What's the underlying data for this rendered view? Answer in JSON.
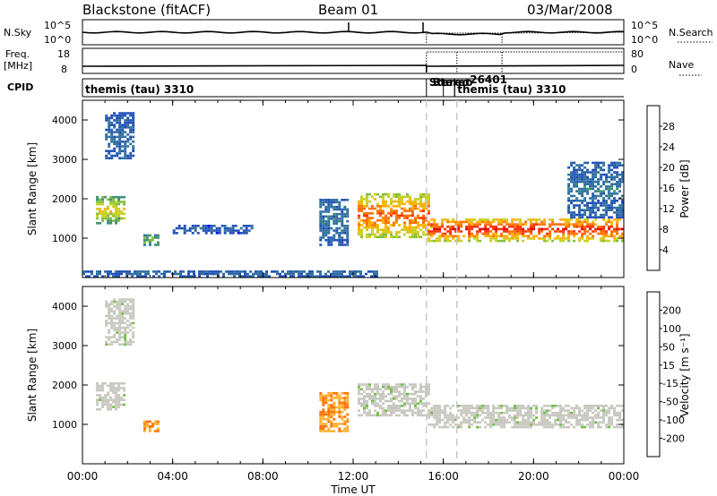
{
  "header": {
    "station": "Blackstone (fitACF)",
    "beam": "Beam 01",
    "date": "03/Mar/2008"
  },
  "chart_data": [
    {
      "type": "line",
      "panel": "nsky",
      "left_label": "N.Sky",
      "right_label": "N.Search",
      "left_ticks": [
        "10^5",
        "10^0"
      ],
      "right_ticks": [
        "10^5",
        "10^0"
      ]
    },
    {
      "type": "line",
      "panel": "freq",
      "left_label_1": "Freq.",
      "left_label_2": "[MHz]",
      "right_label": "Nave",
      "left_ticks": [
        "18",
        "8"
      ],
      "right_ticks": [
        "80",
        "0"
      ]
    },
    {
      "type": "table",
      "panel": "cpid",
      "label": "CPID",
      "segments": [
        {
          "start": 0.0,
          "end": 15.25,
          "name": "themis (tau) 3310"
        },
        {
          "start": 15.25,
          "end": 16.0,
          "name": "Stereo"
        },
        {
          "start": 16.0,
          "end": 16.5,
          "name": "Stereo"
        },
        {
          "start": 16.5,
          "end": 18.6,
          "name": "-26401"
        },
        {
          "start": 16.5,
          "end": 24.0,
          "name": "themis (tau) 3310"
        }
      ]
    },
    {
      "type": "heatmap",
      "panel": "power",
      "ylabel": "Slant Range [km]",
      "yticks": [
        1000,
        2000,
        3000,
        4000
      ],
      "ylim": [
        0,
        4500
      ],
      "colorbar_label": "Power [dB]",
      "colorbar_ticks": [
        "28",
        "24",
        "20",
        "16",
        "12",
        "8",
        "4"
      ],
      "colorbar_colors": [
        "#0000ff",
        "#1f4fb8",
        "#2f6f9f",
        "#3f8f6f",
        "#7fbf3f",
        "#c8d020",
        "#ffb000",
        "#ff7000",
        "#ff3000",
        "#e00000"
      ],
      "echoes": [
        {
          "x0": 0.6,
          "x1": 1.9,
          "y0": 1350,
          "y1": 2050,
          "level": 14
        },
        {
          "x0": 1.0,
          "x1": 2.2,
          "y0": 3000,
          "y1": 4150,
          "level": 4
        },
        {
          "x0": 2.7,
          "x1": 3.3,
          "y0": 800,
          "y1": 1050,
          "level": 10
        },
        {
          "x0": 4.0,
          "x1": 7.5,
          "y0": 1100,
          "y1": 1300,
          "level": 3
        },
        {
          "x0": 10.5,
          "x1": 11.8,
          "y0": 800,
          "y1": 2000,
          "level": 5
        },
        {
          "x0": 12.2,
          "x1": 15.3,
          "y0": 1000,
          "y1": 2100,
          "level": 20
        },
        {
          "x0": 15.3,
          "x1": 24.0,
          "y0": 900,
          "y1": 1500,
          "level": 22
        },
        {
          "x0": 0.0,
          "x1": 13.0,
          "y0": 0,
          "y1": 150,
          "level": 4
        },
        {
          "x0": 21.5,
          "x1": 24.0,
          "y0": 1500,
          "y1": 2900,
          "level": 5
        }
      ]
    },
    {
      "type": "heatmap",
      "panel": "velocity",
      "ylabel": "Slant Range [km]",
      "yticks": [
        1000,
        2000,
        3000,
        4000
      ],
      "ylim": [
        0,
        4500
      ],
      "colorbar_label": "Velocity [m s⁻¹]",
      "colorbar_ticks": [
        "200",
        "100",
        "50",
        "15",
        "-15",
        "-50",
        "-100",
        "-200"
      ],
      "colorbar_colors": [
        "#ff0000",
        "#ff5000",
        "#ff9000",
        "#c8c8c0",
        "#c8c8c0",
        "#70c040",
        "#3f7f3f",
        "#1f3fa0",
        "#0000d0"
      ],
      "echoes": [
        {
          "x0": 0.6,
          "x1": 1.9,
          "y0": 1350,
          "y1": 2050,
          "level": "grey"
        },
        {
          "x0": 1.0,
          "x1": 2.2,
          "y0": 3000,
          "y1": 4150,
          "level": "grey"
        },
        {
          "x0": 2.7,
          "x1": 3.3,
          "y0": 800,
          "y1": 1050,
          "level": "orange"
        },
        {
          "x0": 10.5,
          "x1": 11.8,
          "y0": 800,
          "y1": 1800,
          "level": "orange"
        },
        {
          "x0": 12.2,
          "x1": 15.3,
          "y0": 1200,
          "y1": 2000,
          "level": "grey"
        },
        {
          "x0": 15.3,
          "x1": 24.0,
          "y0": 900,
          "y1": 1450,
          "level": "grey"
        }
      ]
    }
  ],
  "xaxis": {
    "label": "Time UT",
    "ticks": [
      "00:00",
      "04:00",
      "08:00",
      "12:00",
      "16:00",
      "20:00",
      "00:00"
    ],
    "range_hours": [
      0,
      24
    ]
  },
  "dashed_markers_hours": [
    15.25,
    16.6
  ]
}
